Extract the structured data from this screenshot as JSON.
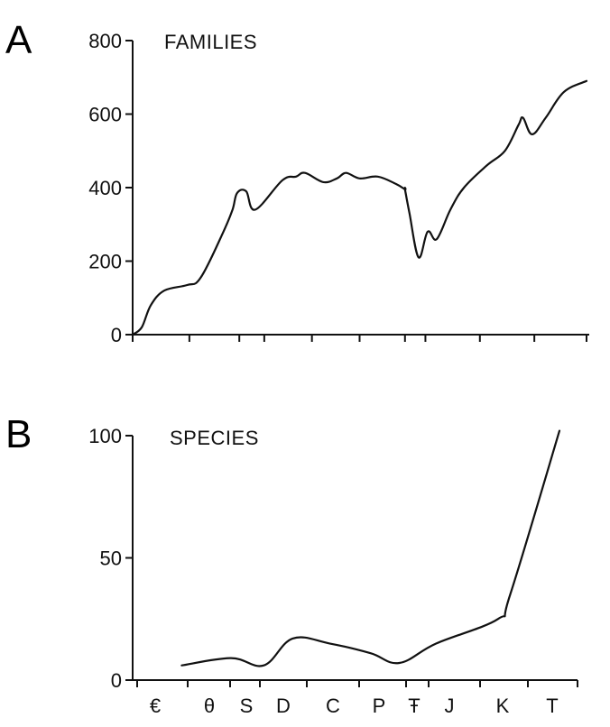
{
  "chart_data": [
    {
      "panel_label": "A",
      "type": "line",
      "title": "FAMILIES",
      "xlabel": "",
      "ylabel": "",
      "ylim": [
        0,
        800
      ],
      "yticks": [
        "0",
        "200",
        "400",
        "600",
        "800"
      ],
      "y_tick_values": [
        0,
        200,
        400,
        600,
        800
      ],
      "grid": false,
      "x_tick_count": 9,
      "series": [
        {
          "x": [
            0.0,
            0.02,
            0.04,
            0.07,
            0.12,
            0.15,
            0.2,
            0.22,
            0.23,
            0.25,
            0.27,
            0.33,
            0.36,
            0.38,
            0.42,
            0.45,
            0.47,
            0.5,
            0.54,
            0.58,
            0.6,
            0.6,
            0.61,
            0.63,
            0.65,
            0.67,
            0.7,
            0.73,
            0.78,
            0.82,
            0.85,
            0.86,
            0.88,
            0.91,
            0.95,
            1.0
          ],
          "values": [
            0,
            20,
            80,
            120,
            135,
            155,
            280,
            340,
            385,
            390,
            340,
            420,
            430,
            440,
            415,
            425,
            440,
            425,
            430,
            410,
            395,
            395,
            330,
            210,
            280,
            260,
            340,
            400,
            460,
            500,
            570,
            590,
            545,
            590,
            660,
            690
          ]
        }
      ]
    },
    {
      "panel_label": "B",
      "type": "line",
      "title": "SPECIES",
      "xlabel": "",
      "ylabel": "",
      "ylim": [
        0,
        100
      ],
      "yticks": [
        "0",
        "50",
        "100"
      ],
      "y_tick_values": [
        0,
        50,
        100
      ],
      "grid": false,
      "categories": [
        "€",
        "θ",
        "S",
        "D",
        "C",
        "P",
        "Ŧ",
        "J",
        "K",
        "T"
      ],
      "category_positions": [
        0.0,
        0.17,
        0.25,
        0.33,
        0.47,
        0.58,
        0.64,
        0.7,
        0.83,
        0.95
      ],
      "series": [
        {
          "x": [
            0.08,
            0.2,
            0.28,
            0.35,
            0.44,
            0.54,
            0.61,
            0.7,
            0.85,
            0.88,
            1.0
          ],
          "values": [
            6,
            9,
            6,
            17,
            15,
            11,
            7,
            15,
            25,
            35,
            102
          ]
        }
      ]
    }
  ]
}
